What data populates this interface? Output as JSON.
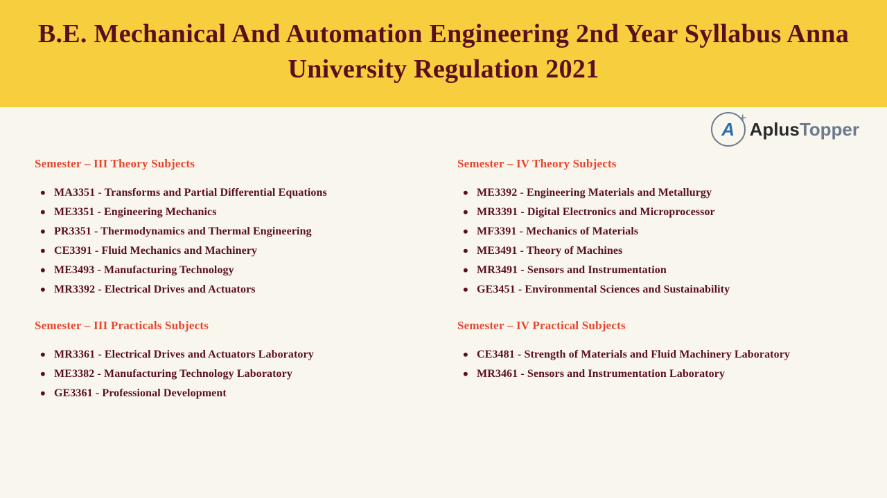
{
  "header": {
    "title": "B.E. Mechanical And Automation Engineering 2nd Year Syllabus Anna University Regulation 2021"
  },
  "logo": {
    "letter": "A",
    "plus": "+",
    "text_aplus": "Aplus",
    "text_topper": "Topper"
  },
  "left": {
    "theory_heading": "Semester – III Theory Subjects",
    "theory_items": [
      "MA3351 - Transforms and Partial Differential Equations",
      "ME3351 - Engineering Mechanics",
      "PR3351 - Thermodynamics and Thermal Engineering",
      "CE3391 - Fluid Mechanics and Machinery",
      "ME3493 - Manufacturing Technology",
      "MR3392 - Electrical Drives and Actuators"
    ],
    "practical_heading": "Semester – III Practicals Subjects",
    "practical_items": [
      "MR3361 - Electrical Drives and Actuators Laboratory",
      "ME3382 - Manufacturing Technology Laboratory",
      "GE3361 - Professional Development"
    ]
  },
  "right": {
    "theory_heading": "Semester – IV Theory Subjects",
    "theory_items": [
      "ME3392 - Engineering Materials and Metallurgy",
      "MR3391 - Digital Electronics and Microprocessor",
      "MF3391 - Mechanics of Materials",
      "ME3491 - Theory of Machines",
      "MR3491 - Sensors and Instrumentation",
      "GE3451 - Environmental Sciences and Sustainability"
    ],
    "practical_heading": "Semester – IV Practical Subjects",
    "practical_items": [
      "CE3481 - Strength of Materials and Fluid Machinery Laboratory",
      "MR3461 - Sensors and Instrumentation Laboratory"
    ]
  },
  "colors": {
    "header_bg": "#f7ce3e",
    "body_bg": "#f9f6ed",
    "title_color": "#5a0f1f",
    "heading_color": "#e8452f",
    "item_color": "#5a0f1f"
  }
}
